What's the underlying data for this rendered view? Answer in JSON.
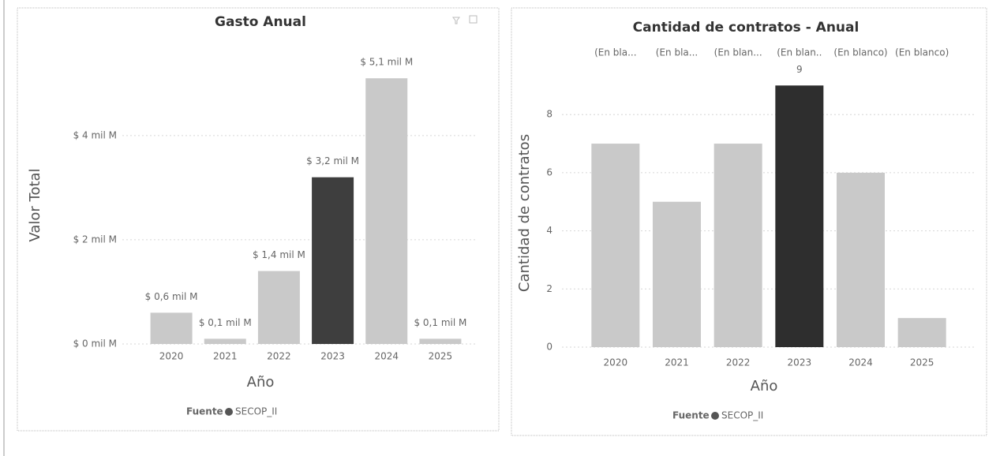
{
  "chart_data": [
    {
      "type": "bar",
      "title": "Gasto Anual",
      "x_label": "Año",
      "y_label": "Valor Total",
      "categories": [
        "2020",
        "2021",
        "2022",
        "2023",
        "2024",
        "2025"
      ],
      "series": [
        {
          "name": "SECOP_II",
          "color": "#555555",
          "values": [
            0.6,
            0.1,
            1.4,
            3.2,
            5.1,
            0.1
          ],
          "value_labels": [
            "$ 0,6 mil M",
            "$ 0,1 mil M",
            "$ 1,4 mil M",
            "$ 3,2 mil M",
            "$ 5,1 mil M",
            "$ 0,1 mil M"
          ],
          "colors": [
            "#c9c9c9",
            "#c9c9c9",
            "#c9c9c9",
            "#3e3e3e",
            "#c9c9c9",
            "#c9c9c9"
          ]
        }
      ],
      "legend_title": "Fuente",
      "ylim": [
        0,
        5.3
      ],
      "yticks": [
        {
          "value": 0,
          "label": "$ 0 mil M"
        },
        {
          "value": 2,
          "label": "$ 2 mil M"
        },
        {
          "value": 4,
          "label": "$ 4 mil M"
        }
      ],
      "grid": true
    },
    {
      "type": "bar",
      "title": "Cantidad de contratos - Anual",
      "x_label": "Año",
      "y_label": "Cantidad de contratos",
      "categories": [
        "2020",
        "2021",
        "2022",
        "2023",
        "2024",
        "2025"
      ],
      "annotations": [
        "(En bla...",
        "(En bla...",
        "(En blan...",
        "(En blan..",
        "(En blanco)",
        "(En blanco)"
      ],
      "series": [
        {
          "name": "SECOP_II",
          "color": "#555555",
          "values": [
            7,
            5,
            7,
            9,
            6,
            1
          ],
          "value_labels": [
            null,
            null,
            null,
            "9",
            null,
            null
          ],
          "colors": [
            "#c9c9c9",
            "#c9c9c9",
            "#c9c9c9",
            "#2e2e2e",
            "#c9c9c9",
            "#c9c9c9"
          ]
        }
      ],
      "legend_title": "Fuente",
      "ylim": [
        0,
        9.2
      ],
      "yticks": [
        0,
        2,
        4,
        6,
        8
      ],
      "grid": true
    }
  ]
}
